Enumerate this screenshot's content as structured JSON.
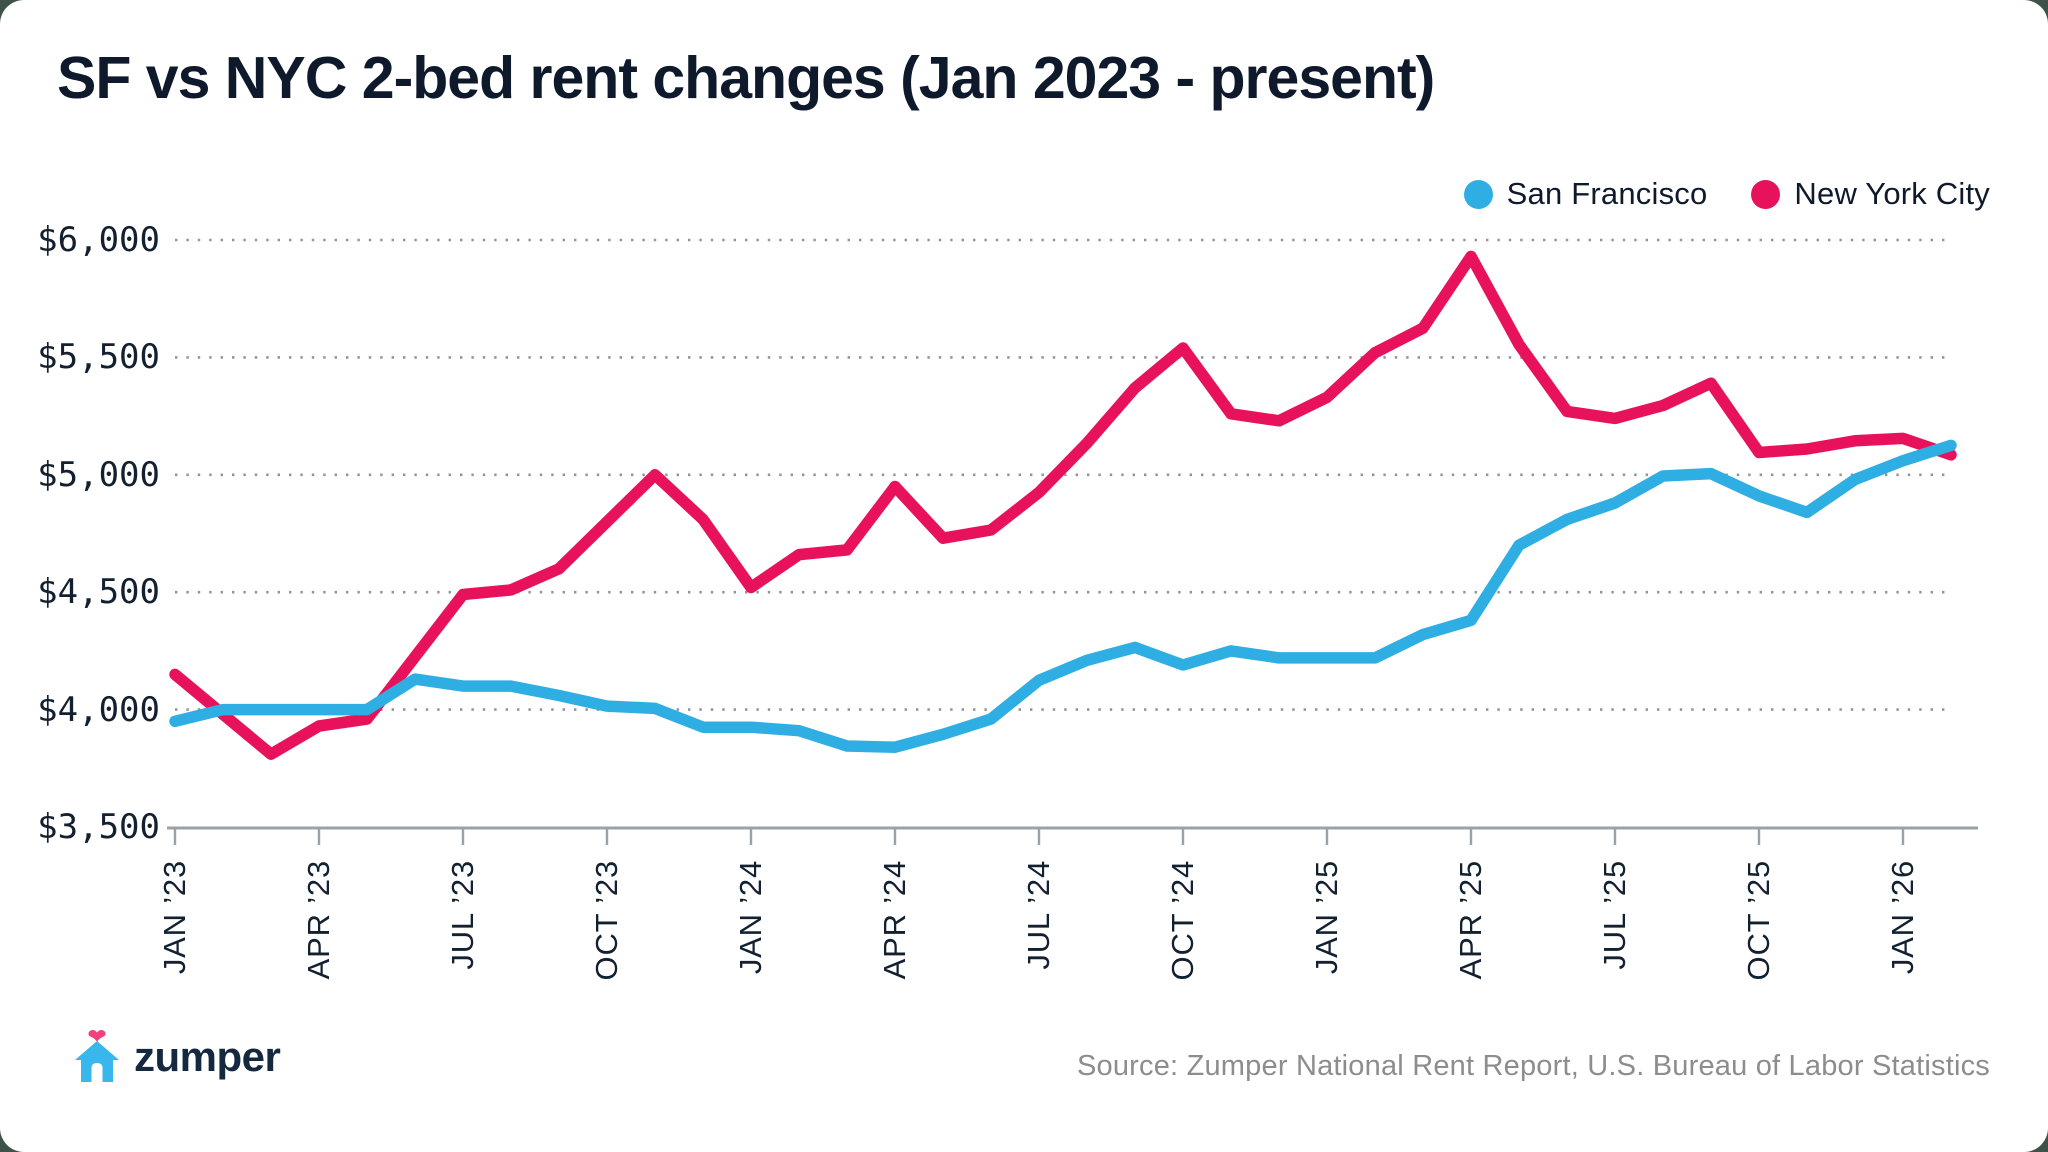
{
  "title": "SF vs NYC 2-bed rent changes (Jan 2023 - present)",
  "legend": [
    {
      "label": "San Francisco",
      "color": "#2FAEE3"
    },
    {
      "label": "New York City",
      "color": "#E8125C"
    }
  ],
  "footer": {
    "logo_text": "zumper",
    "source": "Source: Zumper National Rent Report, U.S. Bureau of Labor Statistics"
  },
  "colors": {
    "sf_line": "#2FAEE3",
    "nyc_line": "#E8125C",
    "title_text": "#0E1A2C",
    "axis": "#9AA1A9",
    "grid_dots": "#8E959E",
    "logo_house_blue": "#38B7EC",
    "logo_heart_pink": "#F2407C",
    "source_gray": "#8D8D8D"
  },
  "chart_data": {
    "type": "line",
    "title": "SF vs NYC 2-bed rent changes (Jan 2023 - present)",
    "xlabel": "",
    "ylabel": "",
    "ylim": [
      3500,
      6000
    ],
    "grid": "dotted horizontal gridlines at $500 steps, solid bottom axis",
    "legend_position": "top-right",
    "x": [
      "Jan 2023",
      "Feb 2023",
      "Mar 2023",
      "Apr 2023",
      "May 2023",
      "Jun 2023",
      "Jul 2023",
      "Aug 2023",
      "Sep 2023",
      "Oct 2023",
      "Nov 2023",
      "Dec 2023",
      "Jan 2024",
      "Feb 2024",
      "Mar 2024",
      "Apr 2024",
      "May 2024",
      "Jun 2024",
      "Jul 2024",
      "Aug 2024",
      "Sep 2024",
      "Oct 2024",
      "Nov 2024",
      "Dec 2024",
      "Jan 2025",
      "Feb 2025",
      "Mar 2025",
      "Apr 2025",
      "May 2025",
      "Jun 2025",
      "Jul 2025",
      "Aug 2025",
      "Sep 2025",
      "Oct 2025",
      "Nov 2025",
      "Dec 2025",
      "Jan 2026",
      "Feb 2026"
    ],
    "x_tick_labels": [
      "JAN ’23",
      "APR ’23",
      "JUL ’23",
      "OCT ’23",
      "JAN ’24",
      "APR ’24",
      "JUL ’24",
      "OCT ’24",
      "JAN ’25",
      "APR ’25",
      "JUL ’25",
      "OCT ’25",
      "JAN ’26"
    ],
    "x_tick_every_n_months": 3,
    "y_ticks": [
      {
        "label": "$3,500",
        "value": 3500
      },
      {
        "label": "$4,000",
        "value": 4000
      },
      {
        "label": "$4,500",
        "value": 4500
      },
      {
        "label": "$5,000",
        "value": 5000
      },
      {
        "label": "$5,500",
        "value": 5500
      },
      {
        "label": "$6,000",
        "value": 6000
      }
    ],
    "series": [
      {
        "name": "New York City",
        "color": "#E8125C",
        "values": [
          4150,
          3980,
          3810,
          3930,
          3960,
          4225,
          4490,
          4510,
          4600,
          4800,
          5000,
          4810,
          4520,
          4660,
          4680,
          4950,
          4730,
          4765,
          4925,
          5135,
          5370,
          5540,
          5260,
          5230,
          5330,
          5520,
          5625,
          5930,
          5555,
          5270,
          5240,
          5295,
          5390,
          5095,
          5110,
          5145,
          5155,
          5085
        ]
      },
      {
        "name": "San Francisco",
        "color": "#2FAEE3",
        "values": [
          3950,
          4000,
          4000,
          4000,
          4000,
          4130,
          4100,
          4100,
          4060,
          4015,
          4005,
          3925,
          3925,
          3910,
          3845,
          3840,
          3895,
          3960,
          4125,
          4210,
          4265,
          4190,
          4250,
          4220,
          4220,
          4220,
          4320,
          4380,
          4700,
          4810,
          4880,
          4995,
          5005,
          4910,
          4840,
          4980,
          5060,
          5125
        ]
      }
    ]
  }
}
